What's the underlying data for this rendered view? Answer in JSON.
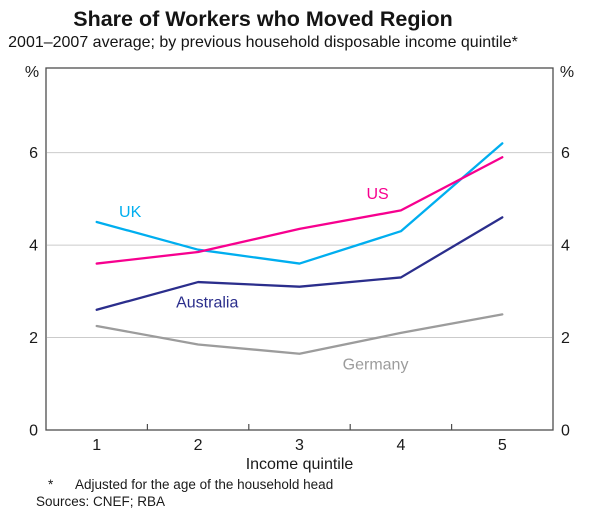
{
  "title": "Share of Workers who Moved Region",
  "subtitle": "2001–2007 average; by previous household disposable income quintile*",
  "axis": {
    "left_unit": "%",
    "right_unit": "%"
  },
  "footnotes": {
    "marker": "*",
    "line1": "Adjusted for the age of the household head",
    "line2": "Sources: CNEF; RBA"
  },
  "colors": {
    "grid": "#cbcbcb",
    "frame": "#4d4d4d",
    "text": "#1a1a1a"
  },
  "chart_data": {
    "type": "line",
    "title": "Share of Workers who Moved Region",
    "subtitle": "2001–2007 average; by previous household disposable income quintile*",
    "xlabel": "Income quintile",
    "unit": "%",
    "categories": [
      "1",
      "2",
      "3",
      "4",
      "5"
    ],
    "ylim": [
      0,
      7.83
    ],
    "yticks": [
      "0",
      "2",
      "4",
      "6"
    ],
    "gridlines": [
      2,
      4,
      6
    ],
    "grid": "horizontal only",
    "legend": "inline series labels",
    "series": [
      {
        "name": "UK",
        "values": [
          4.5,
          3.9,
          3.6,
          4.3,
          6.2
        ],
        "color": "#00aeef",
        "label_pos": [
          1.33,
          4.73
        ]
      },
      {
        "name": "US",
        "values": [
          3.6,
          3.85,
          4.35,
          4.75,
          5.9
        ],
        "color": "#f7008f",
        "label_pos": [
          3.77,
          5.12
        ]
      },
      {
        "name": "Australia",
        "values": [
          2.6,
          3.2,
          3.1,
          3.3,
          4.6
        ],
        "color": "#2b2e8c",
        "label_pos": [
          2.09,
          2.77
        ]
      },
      {
        "name": "Germany",
        "values": [
          2.25,
          1.85,
          1.65,
          2.1,
          2.5
        ],
        "color": "#9c9c9c",
        "label_pos": [
          3.75,
          1.43
        ]
      }
    ]
  }
}
